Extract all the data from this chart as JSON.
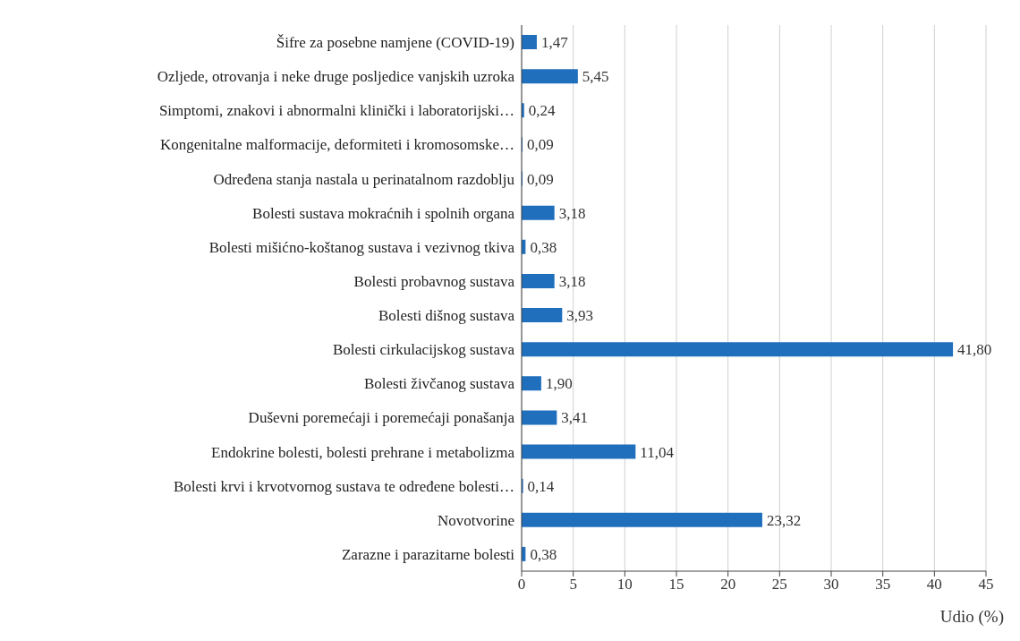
{
  "chart_data": {
    "type": "bar",
    "orientation": "horizontal",
    "categories": [
      "Šifre za posebne namjene (COVID-19)",
      "Ozljede, otrovanja i neke druge posljedice vanjskih uzroka",
      "Simptomi, znakovi i abnormalni klinički i laboratorijski…",
      "Kongenitalne malformacije, deformiteti i kromosomske…",
      "Određena stanja nastala u perinatalnom razdoblju",
      "Bolesti sustava mokraćnih i spolnih organa",
      "Bolesti mišićno-koštanog sustava i vezivnog tkiva",
      "Bolesti probavnog sustava",
      "Bolesti dišnog sustava",
      "Bolesti cirkulacijskog sustava",
      "Bolesti živčanog sustava",
      "Duševni poremećaji i poremećaji ponašanja",
      "Endokrine bolesti, bolesti prehrane i metabolizma",
      "Bolesti krvi i krvotvornog sustava te određene bolesti…",
      "Novotvorine",
      "Zarazne i parazitarne bolesti"
    ],
    "values": [
      1.47,
      5.45,
      0.24,
      0.09,
      0.09,
      3.18,
      0.38,
      3.18,
      3.93,
      41.8,
      1.9,
      3.41,
      11.04,
      0.14,
      23.32,
      0.38
    ],
    "value_labels": [
      "1,47",
      "5,45",
      "0,24",
      "0,09",
      "0,09",
      "3,18",
      "0,38",
      "3,18",
      "3,93",
      "41,80",
      "1,90",
      "3,41",
      "11,04",
      "0,14",
      "23,32",
      "0,38"
    ],
    "color": "#1f6fbd",
    "xlabel": "Udio (%)",
    "xlim": [
      0,
      45
    ],
    "xticks": [
      0,
      5,
      10,
      15,
      20,
      25,
      30,
      35,
      40,
      45
    ],
    "grid": "x"
  }
}
